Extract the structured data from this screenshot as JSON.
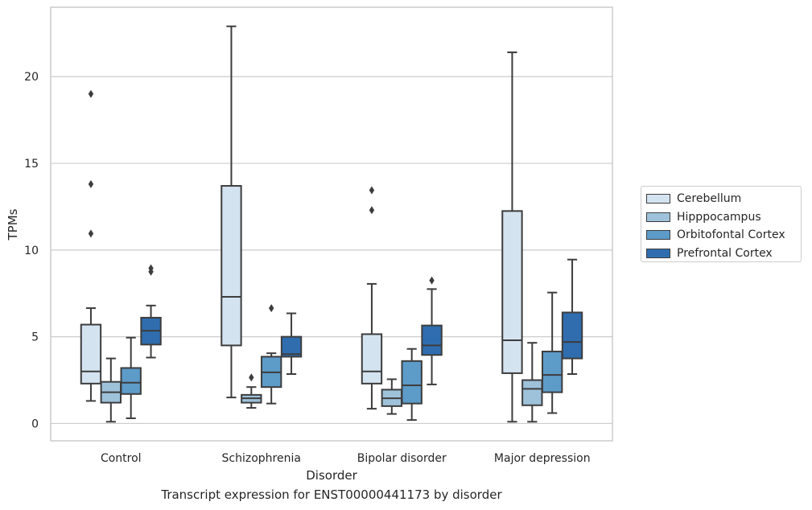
{
  "chart_data": {
    "type": "box",
    "xlabel": "Disorder",
    "ylabel": "TPMs",
    "ylim": [
      -1,
      24
    ],
    "yticks": [
      0,
      5,
      10,
      15,
      20
    ],
    "grid": "horizontal",
    "legend_position": "right",
    "categories": [
      "Control",
      "Schizophrenia",
      "Bipolar disorder",
      "Major depression"
    ],
    "series": [
      {
        "name": "Cerebellum",
        "color": "#d4e3f0",
        "boxes": [
          {
            "whislo": 1.3,
            "q1": 2.3,
            "med": 3.0,
            "q3": 5.7,
            "whishi": 6.65,
            "fliers": [
              10.95,
              13.8,
              19.0
            ]
          },
          {
            "whislo": 1.5,
            "q1": 4.5,
            "med": 7.3,
            "q3": 13.7,
            "whishi": 22.9,
            "fliers": []
          },
          {
            "whislo": 0.85,
            "q1": 2.3,
            "med": 3.0,
            "q3": 5.15,
            "whishi": 8.05,
            "fliers": [
              12.3,
              13.45
            ]
          },
          {
            "whislo": 0.1,
            "q1": 2.9,
            "med": 4.8,
            "q3": 12.25,
            "whishi": 21.4,
            "fliers": []
          }
        ]
      },
      {
        "name": "Hipppocampus",
        "color": "#9ec2da",
        "boxes": [
          {
            "whislo": 0.1,
            "q1": 1.2,
            "med": 1.8,
            "q3": 2.4,
            "whishi": 3.75,
            "fliers": []
          },
          {
            "whislo": 0.9,
            "q1": 1.2,
            "med": 1.45,
            "q3": 1.65,
            "whishi": 2.1,
            "fliers": [
              2.65
            ]
          },
          {
            "whislo": 0.55,
            "q1": 1.0,
            "med": 1.45,
            "q3": 1.95,
            "whishi": 2.55,
            "fliers": []
          },
          {
            "whislo": 0.1,
            "q1": 1.05,
            "med": 2.0,
            "q3": 2.5,
            "whishi": 4.65,
            "fliers": []
          }
        ]
      },
      {
        "name": "Orbitofontal Cortex",
        "color": "#5d9bc9",
        "boxes": [
          {
            "whislo": 0.3,
            "q1": 1.7,
            "med": 2.35,
            "q3": 3.2,
            "whishi": 4.95,
            "fliers": []
          },
          {
            "whislo": 1.15,
            "q1": 2.1,
            "med": 2.95,
            "q3": 3.85,
            "whishi": 4.05,
            "fliers": [
              6.65
            ]
          },
          {
            "whislo": 0.2,
            "q1": 1.15,
            "med": 2.2,
            "q3": 3.6,
            "whishi": 4.3,
            "fliers": []
          },
          {
            "whislo": 0.6,
            "q1": 1.8,
            "med": 2.8,
            "q3": 4.15,
            "whishi": 7.55,
            "fliers": []
          }
        ]
      },
      {
        "name": "Prefrontal Cortex",
        "color": "#2f6daf",
        "boxes": [
          {
            "whislo": 3.8,
            "q1": 4.55,
            "med": 5.35,
            "q3": 6.1,
            "whishi": 6.8,
            "fliers": [
              8.75,
              8.95
            ]
          },
          {
            "whislo": 2.85,
            "q1": 3.85,
            "med": 4.0,
            "q3": 5.0,
            "whishi": 6.35,
            "fliers": []
          },
          {
            "whislo": 2.25,
            "q1": 3.95,
            "med": 4.5,
            "q3": 5.65,
            "whishi": 7.75,
            "fliers": [
              8.25
            ]
          },
          {
            "whislo": 2.85,
            "q1": 3.75,
            "med": 4.7,
            "q3": 6.4,
            "whishi": 9.45,
            "fliers": []
          }
        ]
      }
    ]
  },
  "caption": "Transcript expression for ENST00000441173 by disorder"
}
